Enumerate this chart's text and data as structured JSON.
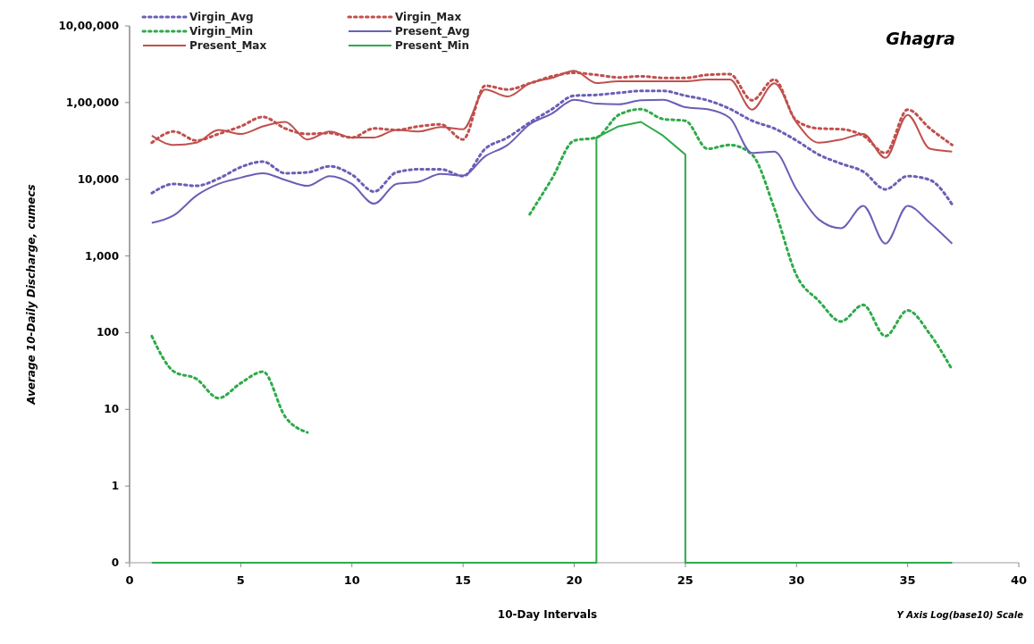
{
  "chart_data": {
    "type": "line",
    "title": "Ghagra",
    "xlabel": "10-Day Intervals",
    "ylabel": "Average 10-Daily Discharge, cumecs",
    "annotations": [
      "Y Axis Log(base10) Scale"
    ],
    "x": [
      1,
      2,
      3,
      4,
      5,
      6,
      7,
      8,
      9,
      10,
      11,
      12,
      13,
      14,
      15,
      16,
      17,
      18,
      19,
      20,
      21,
      22,
      23,
      24,
      25,
      26,
      27,
      28,
      29,
      30,
      31,
      32,
      33,
      34,
      35,
      36,
      37
    ],
    "log": "y",
    "grid": false,
    "legend": "top left",
    "marker": "none",
    "xlim": [
      0,
      40
    ],
    "xticks": [
      0,
      5,
      10,
      15,
      20,
      25,
      30,
      35,
      40
    ],
    "ylim": [
      0.1,
      1000000
    ],
    "yticks": [
      {
        "value": 0.1,
        "label": "0"
      },
      1,
      10,
      {
        "value": 100,
        "label": "100"
      },
      {
        "value": 1000,
        "label": "1,000"
      },
      {
        "value": 10000,
        "label": "10,000"
      },
      {
        "value": 100000,
        "label": "1,00,000"
      },
      {
        "value": 1000000,
        "label": "10,00,000"
      }
    ],
    "series": [
      {
        "name": "Virgin_Avg",
        "color": "#6a5fb5",
        "line_style": "dotted",
        "values": [
          6600,
          8700,
          8200,
          10200,
          14400,
          17000,
          12000,
          12300,
          14800,
          11500,
          6900,
          12300,
          13500,
          13500,
          11000,
          25000,
          35000,
          55000,
          82000,
          123000,
          126000,
          134000,
          142000,
          142000,
          123000,
          107000,
          83000,
          58000,
          46000,
          32000,
          21000,
          16000,
          12600,
          7400,
          11000,
          9800,
          4700
        ]
      },
      {
        "name": "Virgin_Max",
        "color": "#c0504d",
        "line_style": "dotted",
        "values": [
          30000,
          42000,
          32000,
          39000,
          49000,
          65000,
          46000,
          39000,
          40000,
          35000,
          46000,
          44000,
          49000,
          52000,
          33000,
          166000,
          148000,
          178000,
          220000,
          245000,
          230000,
          213000,
          220000,
          210000,
          210000,
          230000,
          235000,
          107000,
          200000,
          58000,
          46000,
          45000,
          37000,
          22000,
          81000,
          46000,
          28000
        ]
      },
      {
        "name": "Virgin_Min",
        "color": "#2eaa4a",
        "line_style": "dotted",
        "values": [
          90,
          31,
          25,
          14,
          22,
          31,
          8,
          5,
          null,
          null,
          null,
          null,
          null,
          null,
          null,
          null,
          null,
          3500,
          10200,
          32000,
          35000,
          69000,
          82000,
          61000,
          58000,
          25000,
          28000,
          21000,
          4200,
          560,
          260,
          140,
          230,
          90,
          195,
          96,
          33
        ]
      },
      {
        "name": "Present_Avg",
        "color": "#6a5fb5",
        "line_style": "solid",
        "values": [
          2700,
          3400,
          6100,
          8700,
          10500,
          12000,
          9800,
          8200,
          11000,
          8700,
          4800,
          8700,
          9300,
          11700,
          11200,
          20000,
          28000,
          52000,
          72000,
          109000,
          97000,
          95000,
          107000,
          109000,
          87000,
          82000,
          63000,
          22000,
          23000,
          7400,
          3000,
          2300,
          4500,
          1450,
          4500,
          2700,
          1450
        ]
      },
      {
        "name": "Present_Max",
        "color": "#c0504d",
        "line_style": "solid",
        "values": [
          37000,
          28000,
          30000,
          44000,
          39000,
          49000,
          56000,
          33000,
          42000,
          35000,
          35000,
          44000,
          42000,
          48000,
          45000,
          148000,
          120000,
          178000,
          210000,
          260000,
          180000,
          190000,
          190000,
          190000,
          190000,
          200000,
          200000,
          81000,
          178000,
          55000,
          30000,
          33000,
          39000,
          19000,
          69000,
          25000,
          23000
        ]
      },
      {
        "name": "Present_Min",
        "color": "#2eaa4a",
        "line_style": "solid",
        "x": [
          1,
          2,
          3,
          4,
          5,
          6,
          7,
          8,
          9,
          10,
          11,
          12,
          13,
          14,
          15,
          16,
          17,
          18,
          19,
          20,
          21,
          21,
          22,
          23,
          24,
          25,
          25,
          26,
          27,
          28,
          29,
          30,
          31,
          32,
          33,
          34,
          35,
          36,
          37
        ],
        "values": [
          0.1,
          0.1,
          0.1,
          0.1,
          0.1,
          0.1,
          0.1,
          0.1,
          0.1,
          0.1,
          0.1,
          0.1,
          0.1,
          0.1,
          0.1,
          0.1,
          0.1,
          0.1,
          0.1,
          0.1,
          0.1,
          35000,
          49000,
          56000,
          37000,
          21000,
          0.1,
          0.1,
          0.1,
          0.1,
          0.1,
          0.1,
          0.1,
          0.1,
          0.1,
          0.1,
          0.1,
          0.1,
          0.1
        ]
      }
    ]
  }
}
